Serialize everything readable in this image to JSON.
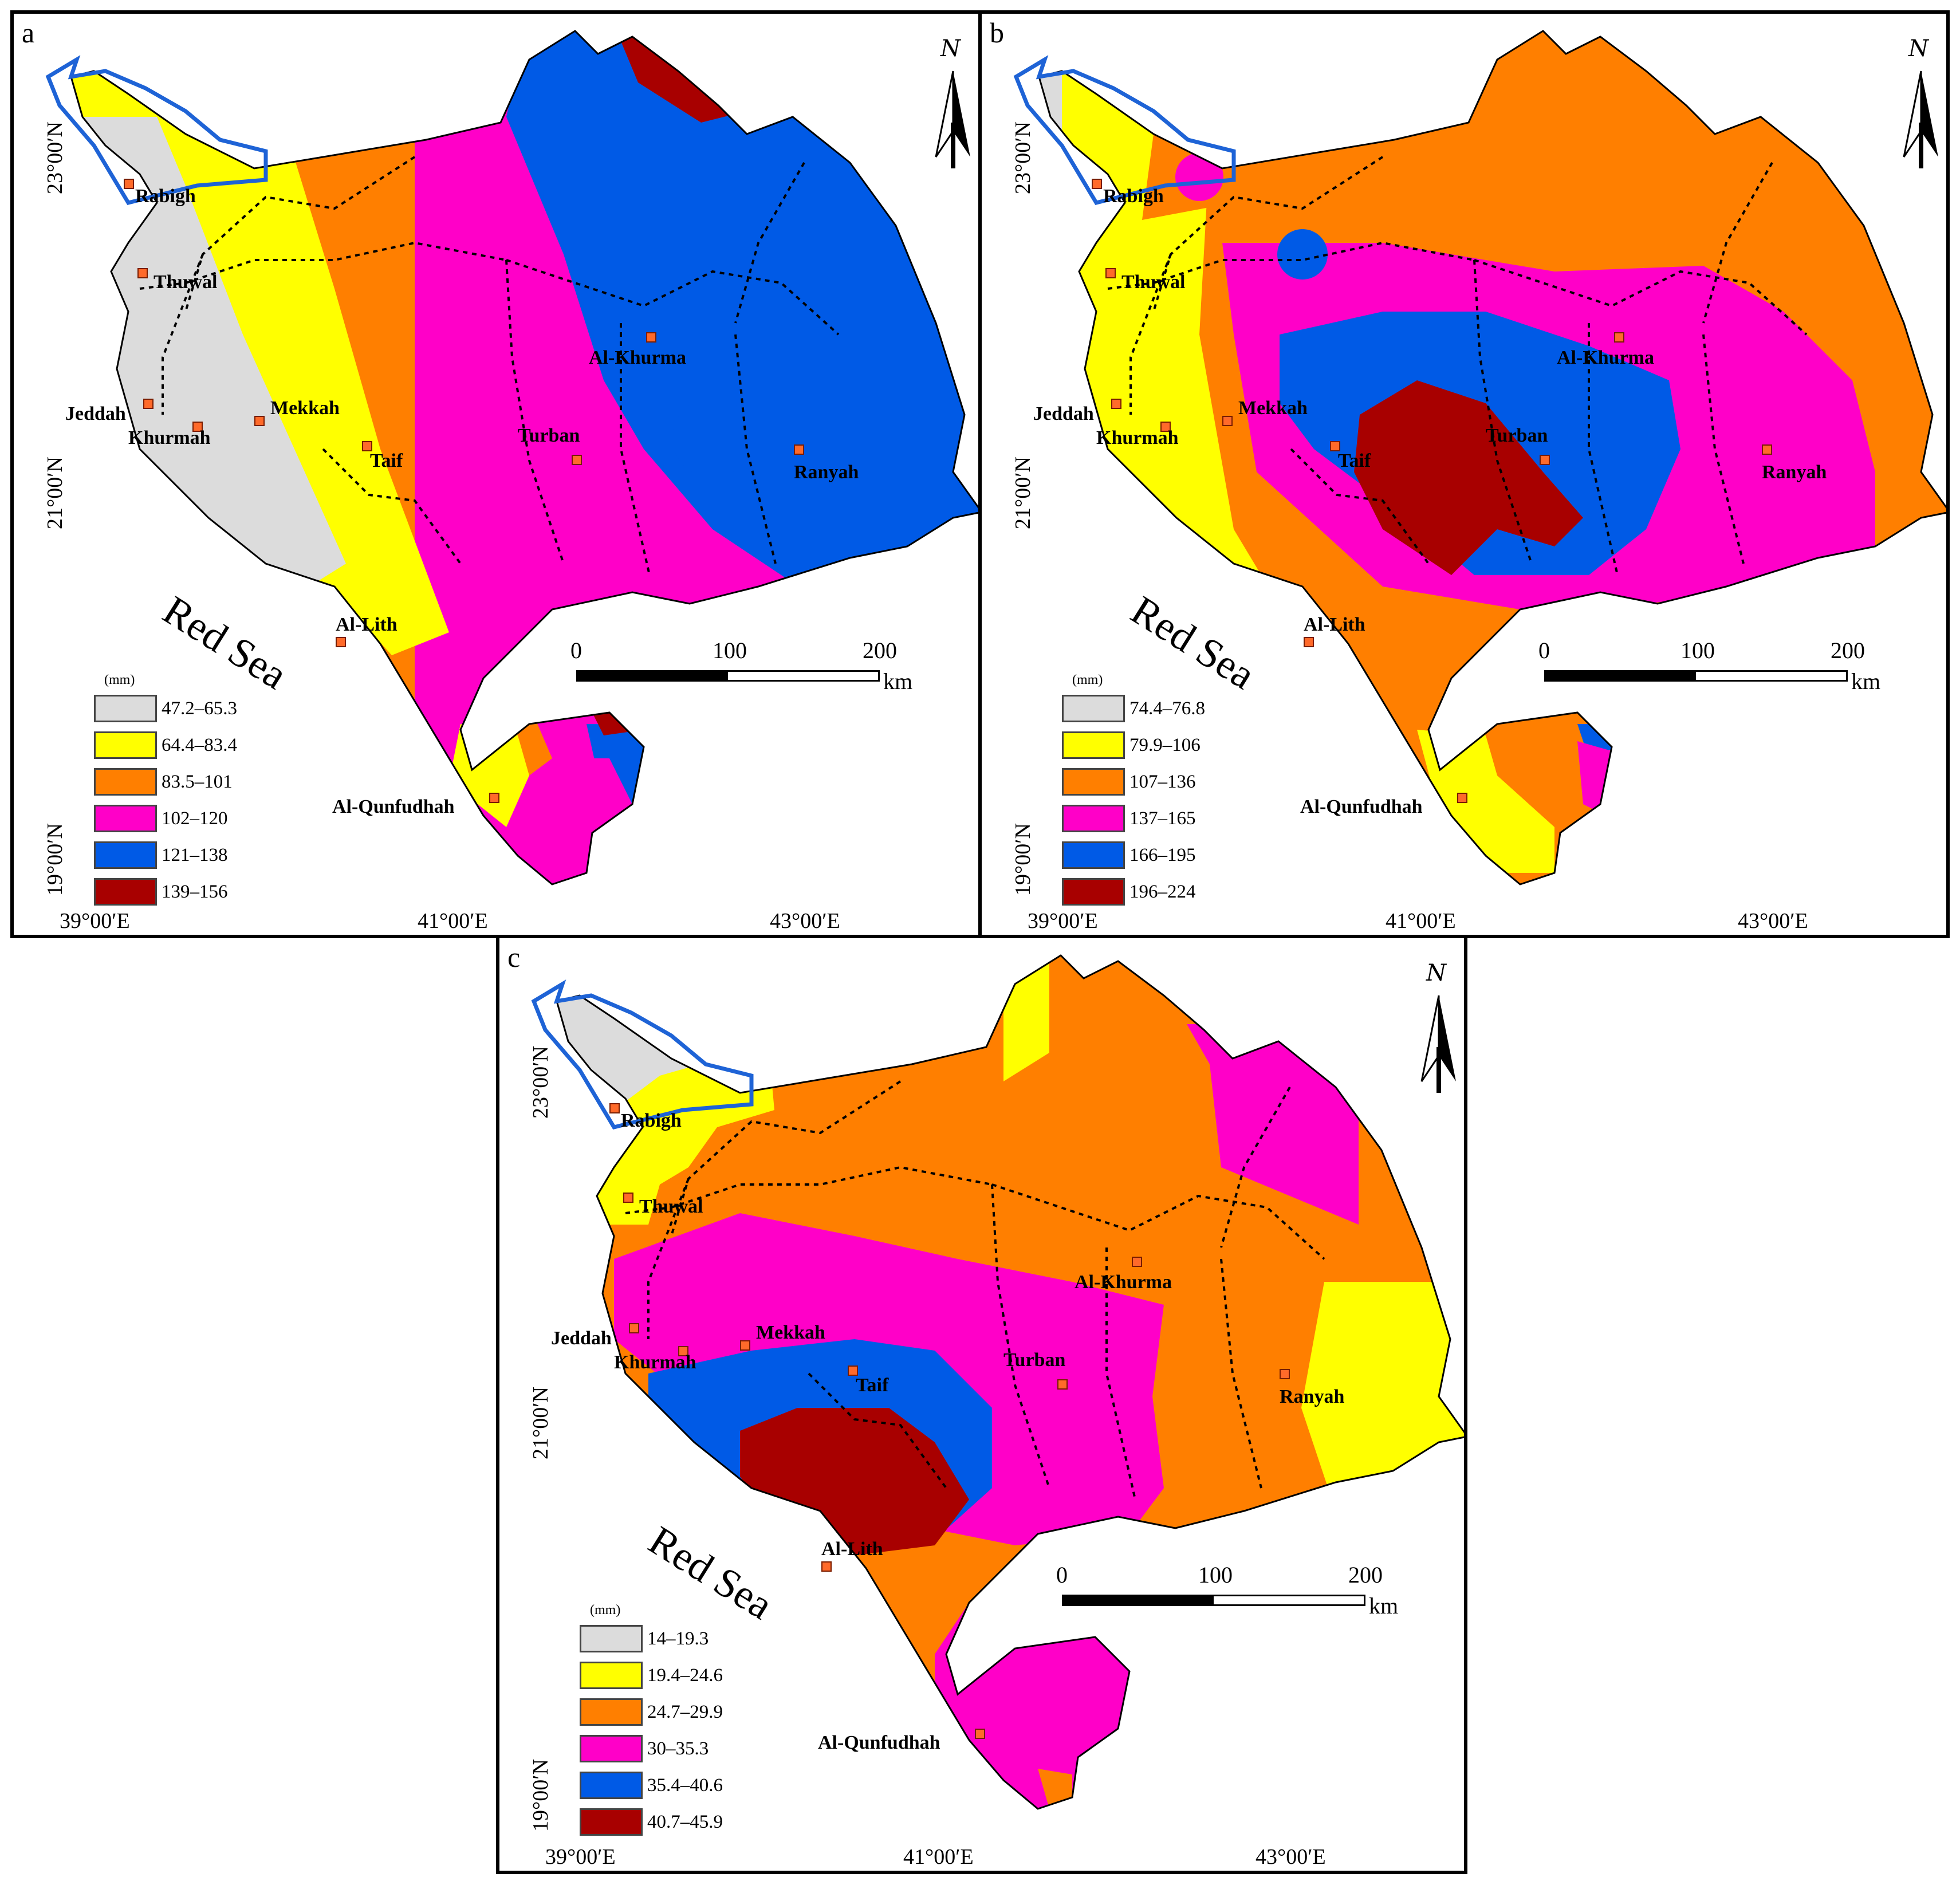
{
  "panels": {
    "a": {
      "label": "a",
      "unit": "(mm)",
      "legend": [
        {
          "range": "47.2–65.3",
          "color": "#dcdcdc"
        },
        {
          "range": "64.4–83.4",
          "color": "#ffff00"
        },
        {
          "range": "83.5–101",
          "color": "#ff7f00"
        },
        {
          "range": "102–120",
          "color": "#ff00c8"
        },
        {
          "range": "121–138",
          "color": "#005ae6"
        },
        {
          "range": "139–156",
          "color": "#a80000"
        }
      ]
    },
    "b": {
      "label": "b",
      "unit": "(mm)",
      "legend": [
        {
          "range": "74.4–76.8",
          "color": "#dcdcdc"
        },
        {
          "range": "79.9–106",
          "color": "#ffff00"
        },
        {
          "range": "107–136",
          "color": "#ff7f00"
        },
        {
          "range": "137–165",
          "color": "#ff00c8"
        },
        {
          "range": "166–195",
          "color": "#005ae6"
        },
        {
          "range": "196–224",
          "color": "#a80000"
        }
      ]
    },
    "c": {
      "label": "c",
      "unit": "(mm)",
      "legend": [
        {
          "range": "14–19.3",
          "color": "#dcdcdc"
        },
        {
          "range": "19.4–24.6",
          "color": "#ffff00"
        },
        {
          "range": "24.7–29.9",
          "color": "#ff7f00"
        },
        {
          "range": "30–35.3",
          "color": "#ff00c8"
        },
        {
          "range": "35.4–40.6",
          "color": "#005ae6"
        },
        {
          "range": "40.7–45.9",
          "color": "#a80000"
        }
      ]
    }
  },
  "map": {
    "lat_labels": [
      "23°00′N",
      "21°00′N",
      "19°00′N"
    ],
    "lon_labels": [
      "39°00′E",
      "41°00′E",
      "43°00′E"
    ],
    "sea_label": "Red Sea",
    "north_label": "N",
    "scale": {
      "ticks": [
        "0",
        "100",
        "200"
      ],
      "unit": "km"
    },
    "cities": {
      "rabigh": "Rabigh",
      "thuwal": "Thuwal",
      "jeddah": "Jeddah",
      "khurmah": "Khurmah",
      "mekkah": "Mekkah",
      "taif": "Taif",
      "turban": "Turban",
      "al_khurma": "Al-Khurma",
      "ranyah": "Ranyah",
      "al_lith": "Al-Lith",
      "al_qunfudhah": "Al-Qunfudhah"
    },
    "colors": {
      "basin_outline": "#1e63d6",
      "marker": "#ff6a2a",
      "gray": "#dcdcdc",
      "yellow": "#ffff00",
      "orange": "#ff7f00",
      "magenta": "#ff00c8",
      "blue": "#005ae6",
      "darkred": "#a80000"
    }
  }
}
